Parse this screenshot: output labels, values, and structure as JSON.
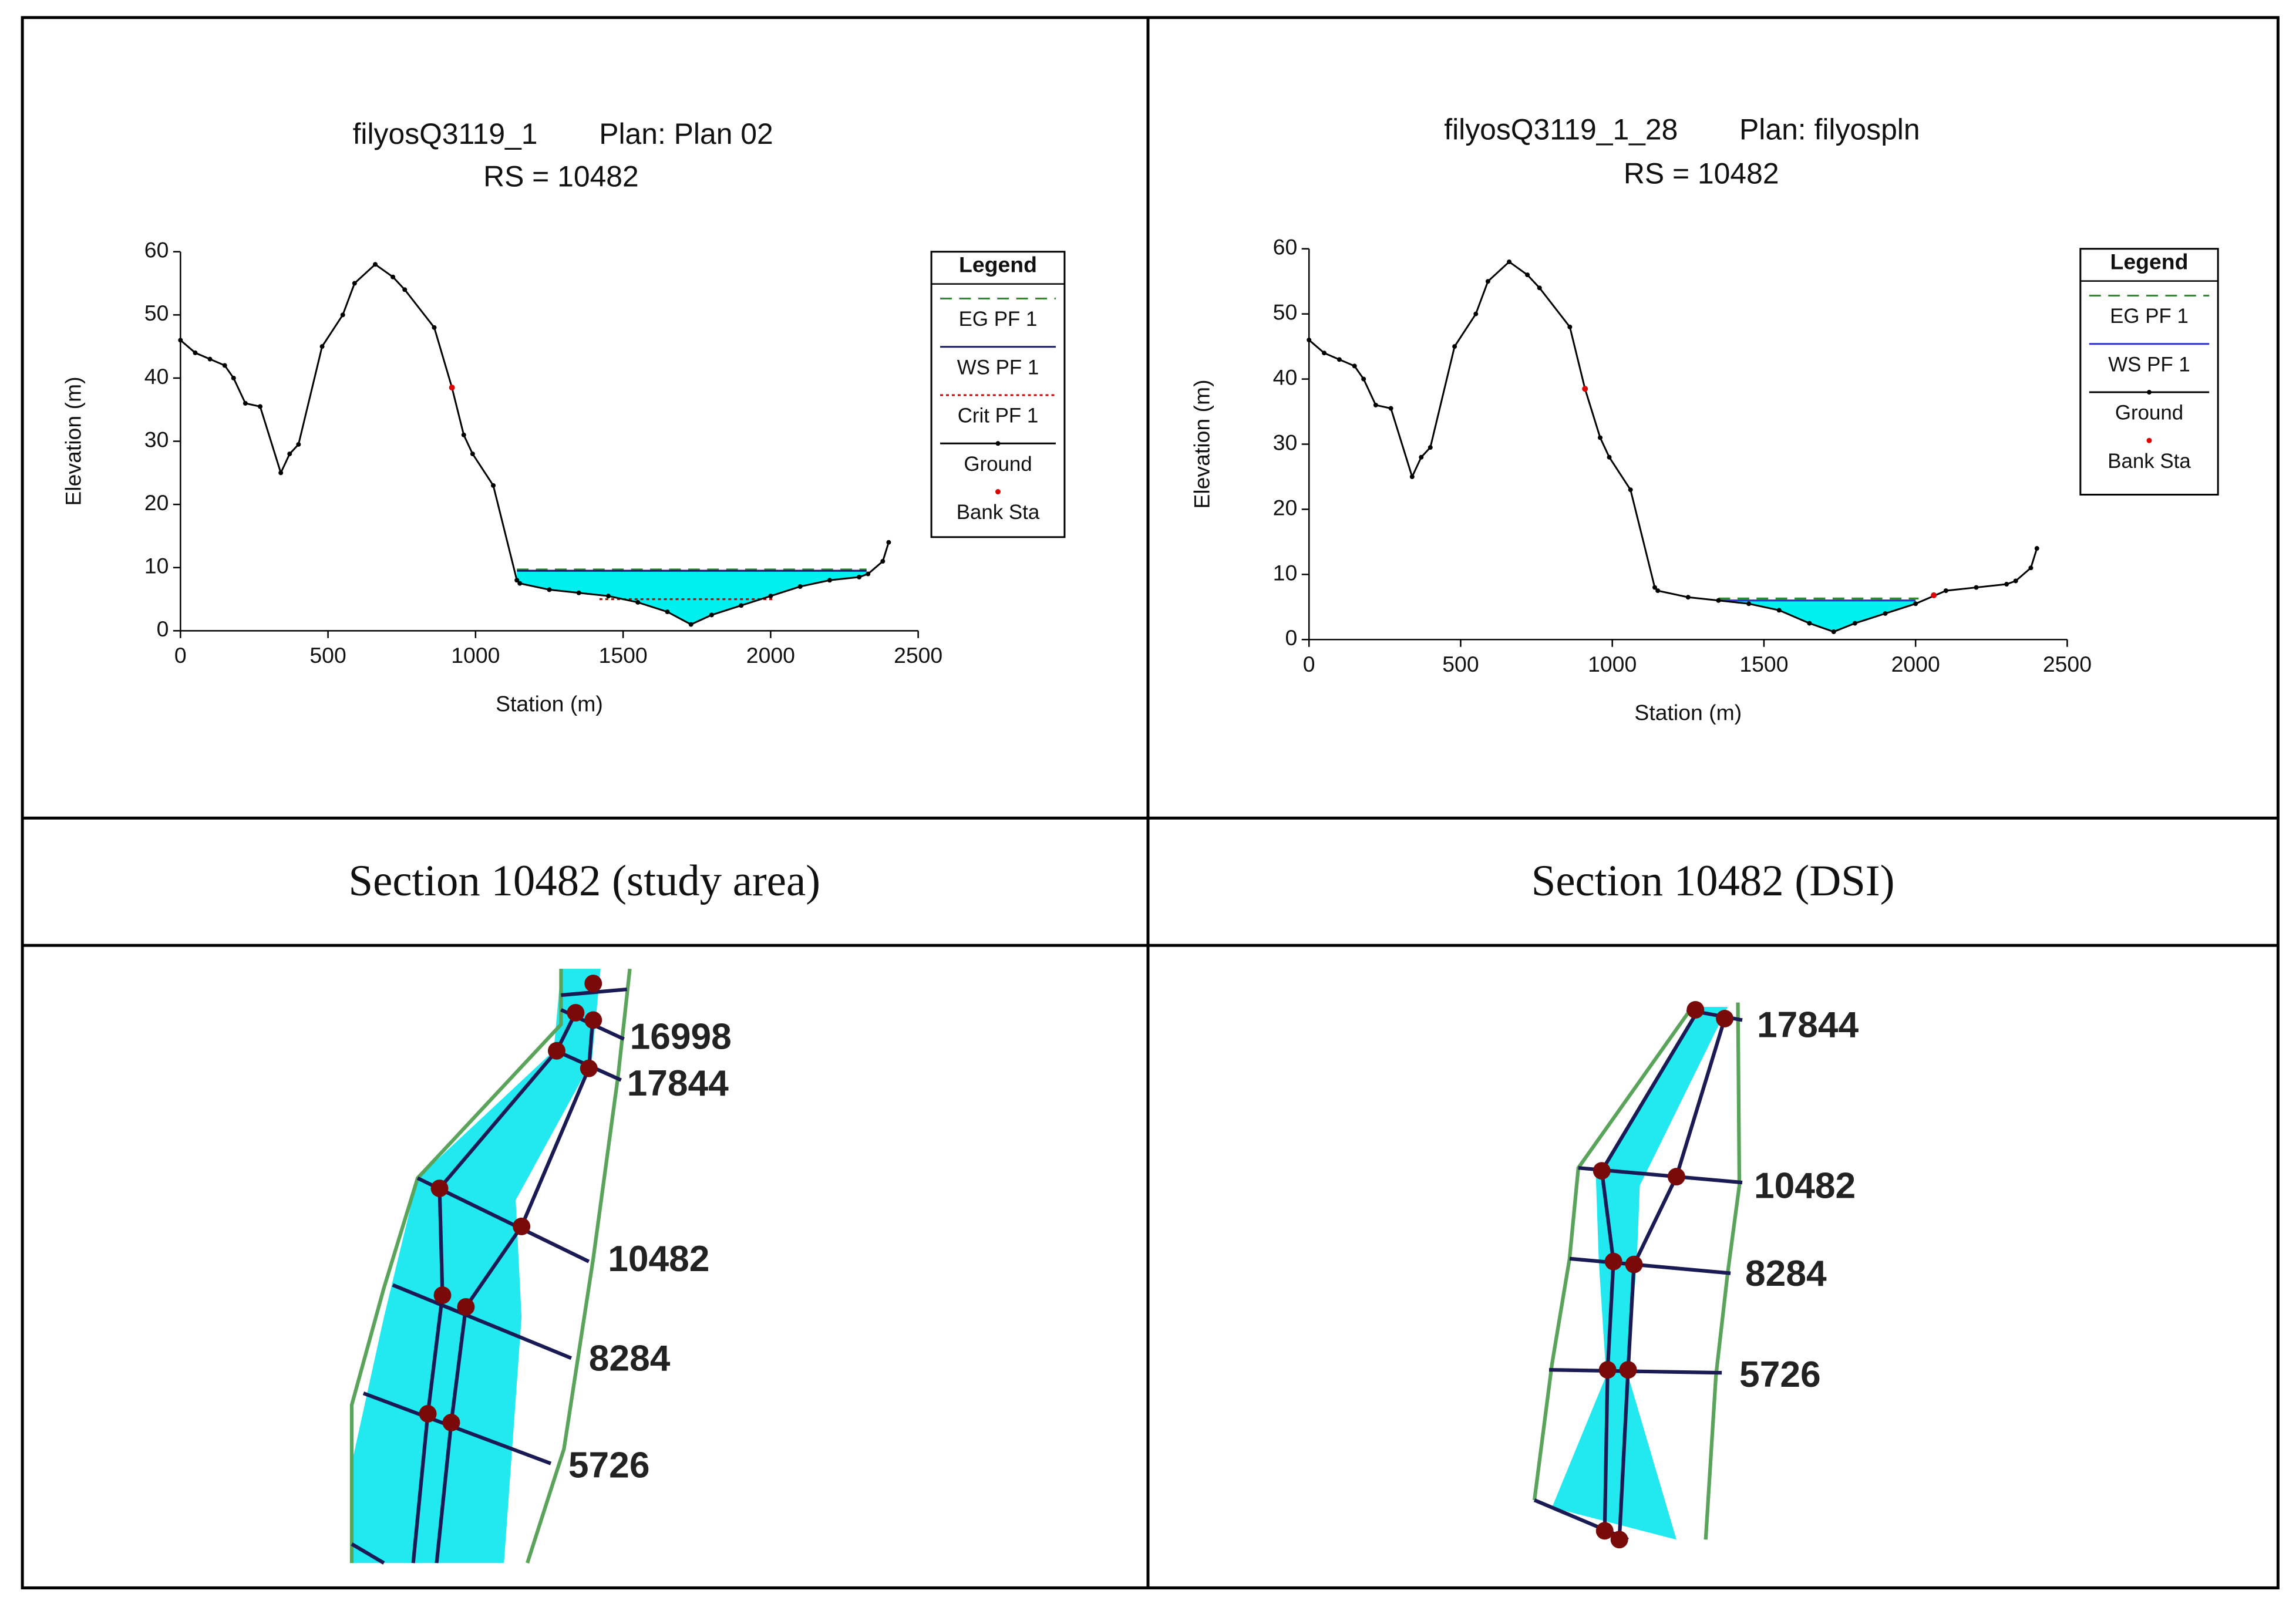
{
  "chart_data": [
    {
      "type": "line",
      "title": "filyosQ3119_1",
      "plan": "Plan: Plan 02",
      "subtitle": "RS = 10482",
      "xlabel": "Station (m)",
      "ylabel": "Elevation (m)",
      "legend_title": "Legend",
      "legend": "right",
      "xlim": [
        0,
        2500
      ],
      "xticks": [
        0,
        500,
        1000,
        1500,
        2000,
        2500
      ],
      "ylim": [
        0,
        60
      ],
      "yticks": [
        0,
        10,
        20,
        30,
        40,
        50,
        60
      ],
      "series": [
        {
          "name": "EG PF 1",
          "color": "#2e8b2e",
          "style": "dashed",
          "x": [
            1140,
            2325
          ],
          "values": [
            9.7,
            9.7
          ]
        },
        {
          "name": "WS PF 1",
          "color": "#1a1a6e",
          "style": "solid",
          "fill": "#00f0f0",
          "x": [
            1140,
            2325
          ],
          "values": [
            9.5,
            9.5
          ]
        },
        {
          "name": "Crit PF 1",
          "color": "#c00000",
          "style": "dotted",
          "x": [
            1420,
            2010
          ],
          "values": [
            5,
            5
          ]
        },
        {
          "name": "Ground",
          "color": "#000000",
          "style": "ground",
          "x": [
            0,
            50,
            100,
            150,
            180,
            220,
            270,
            340,
            370,
            400,
            480,
            550,
            590,
            660,
            720,
            760,
            860,
            920,
            960,
            990,
            1060,
            1140,
            1150,
            1250,
            1350,
            1450,
            1550,
            1650,
            1730,
            1800,
            1900,
            2000,
            2100,
            2200,
            2300,
            2330,
            2380,
            2400
          ],
          "values": [
            46,
            44,
            43,
            42,
            40,
            36,
            35.5,
            25,
            28,
            29.5,
            45,
            50,
            55,
            58,
            56,
            54,
            48,
            38.5,
            31,
            28,
            23,
            8,
            7.5,
            6.5,
            6,
            5.5,
            4.5,
            3,
            1,
            2.5,
            4,
            5.5,
            7,
            8,
            8.5,
            9,
            11,
            14
          ]
        },
        {
          "name": "Bank Sta",
          "color": "#e00000",
          "style": "points",
          "x": [
            920
          ],
          "values": [
            38.5
          ]
        }
      ]
    },
    {
      "type": "line",
      "title": "filyosQ3119_1_28",
      "plan": "Plan: filyospln",
      "subtitle": "RS = 10482",
      "xlabel": "Station (m)",
      "ylabel": "Elevation (m)",
      "legend_title": "Legend",
      "legend": "right",
      "xlim": [
        0,
        2500
      ],
      "xticks": [
        0,
        500,
        1000,
        1500,
        2000,
        2500
      ],
      "ylim": [
        0,
        60
      ],
      "yticks": [
        0,
        10,
        20,
        30,
        40,
        50,
        60
      ],
      "series": [
        {
          "name": "EG PF 1",
          "color": "#2e8b2e",
          "style": "dashed",
          "x": [
            1350,
            2010
          ],
          "values": [
            6.3,
            6.3
          ]
        },
        {
          "name": "WS PF 1",
          "color": "#3030d0",
          "style": "solid",
          "fill": "#00f0f0",
          "x": [
            1350,
            2000
          ],
          "values": [
            6,
            6
          ]
        },
        {
          "name": "Ground",
          "color": "#000000",
          "style": "ground",
          "x": [
            0,
            50,
            100,
            150,
            180,
            220,
            270,
            340,
            370,
            400,
            480,
            550,
            590,
            660,
            720,
            760,
            860,
            910,
            960,
            990,
            1060,
            1140,
            1150,
            1250,
            1350,
            1450,
            1550,
            1650,
            1730,
            1800,
            1900,
            2000,
            2100,
            2200,
            2300,
            2330,
            2380,
            2400
          ],
          "values": [
            46,
            44,
            43,
            42,
            40,
            36,
            35.5,
            25,
            28,
            29.5,
            45,
            50,
            55,
            58,
            56,
            54,
            48,
            38.5,
            31,
            28,
            23,
            8,
            7.5,
            6.5,
            6,
            5.5,
            4.5,
            2.5,
            1.2,
            2.5,
            4,
            5.5,
            7.5,
            8,
            8.5,
            9,
            11,
            14
          ]
        },
        {
          "name": "Bank Sta",
          "color": "#e00000",
          "style": "points",
          "x": [
            910,
            2060
          ],
          "values": [
            38.5,
            6.8
          ]
        }
      ]
    }
  ],
  "captions": [
    "Section 10482 (study area)",
    "Section 10482 (DSI)"
  ],
  "maps": [
    {
      "labels": [
        "16998",
        "17844",
        "10482",
        "8284",
        "5726"
      ]
    },
    {
      "labels": [
        "17844",
        "10482",
        "8284",
        "5726"
      ]
    }
  ]
}
